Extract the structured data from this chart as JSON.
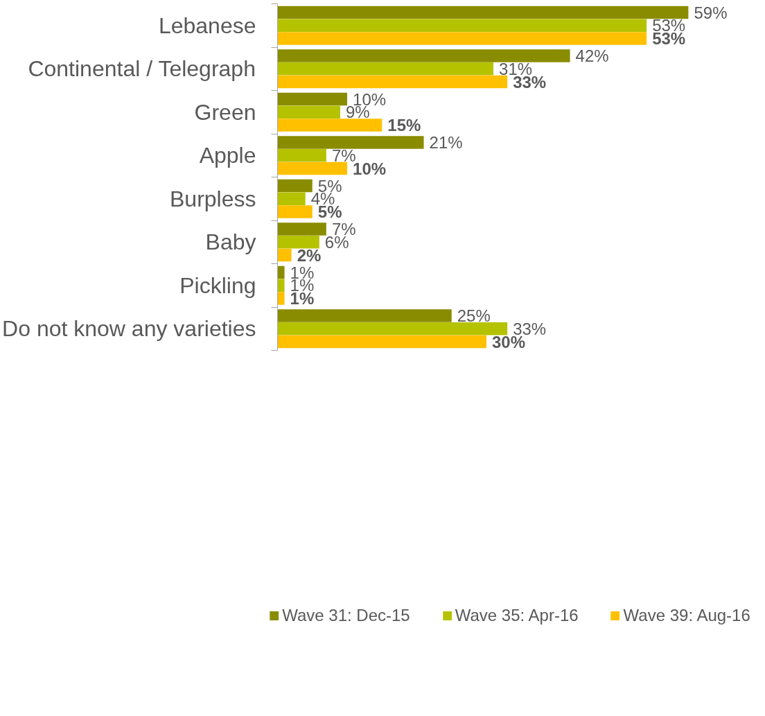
{
  "chart_data": {
    "type": "bar",
    "orientation": "horizontal",
    "categories": [
      "Lebanese",
      "Continental / Telegraph",
      "Green",
      "Apple",
      "Burpless",
      "Baby",
      "Pickling",
      "Do not know any varieties"
    ],
    "tick_labels": "y",
    "grid": false,
    "legend": "bottom",
    "series": [
      {
        "name": "Wave 31: Dec-15",
        "color": "#8a8c00",
        "values": [
          59,
          42,
          10,
          21,
          5,
          7,
          1,
          25
        ],
        "value_labels": [
          "59%",
          "42%",
          "10%",
          "21%",
          "5%",
          "7%",
          "1%",
          "25%"
        ]
      },
      {
        "name": "Wave 35: Apr-16",
        "color": "#b5c200",
        "values": [
          53,
          31,
          9,
          7,
          4,
          6,
          1,
          33
        ],
        "value_labels": [
          "53%",
          "31%",
          "9%",
          "7%",
          "4%",
          "6%",
          "1%",
          "33%"
        ]
      },
      {
        "name": "Wave 39: Aug-16",
        "color": "#ffc000",
        "values": [
          53,
          33,
          15,
          10,
          5,
          2,
          1,
          30
        ],
        "value_labels": [
          "53%",
          "33%",
          "15%",
          "10%",
          "5%",
          "2%",
          "1%",
          "30%"
        ]
      }
    ]
  }
}
